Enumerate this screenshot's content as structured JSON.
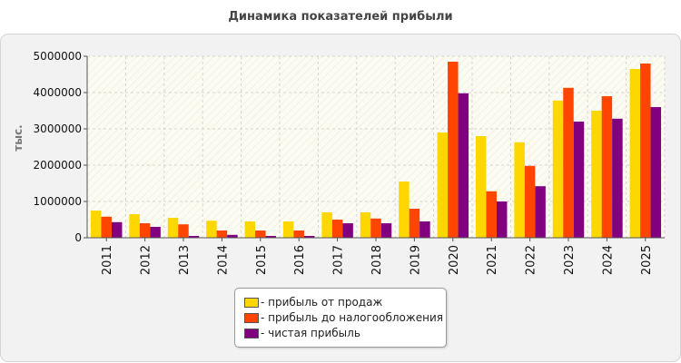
{
  "chart_data": {
    "type": "bar",
    "title": "Динамика показателей прибыли",
    "ylabel": "тыс.",
    "xlabel": "",
    "ylim": [
      0,
      5000000
    ],
    "yticks": [
      "0",
      "1000000",
      "2000000",
      "3000000",
      "4000000",
      "5000000"
    ],
    "categories": [
      "2011",
      "2012",
      "2013",
      "2014",
      "2015",
      "2016",
      "2017",
      "2018",
      "2019",
      "2020",
      "2021",
      "2022",
      "2023",
      "2024",
      "2025"
    ],
    "series": [
      {
        "name": "- прибыль от продаж",
        "color": "#ffd700",
        "values": [
          750000,
          650000,
          550000,
          470000,
          450000,
          450000,
          700000,
          700000,
          1550000,
          2900000,
          2800000,
          2630000,
          3780000,
          3500000,
          4650000
        ]
      },
      {
        "name": "- прибыль до налогообложения",
        "color": "#ff4500",
        "values": [
          580000,
          400000,
          370000,
          200000,
          200000,
          200000,
          500000,
          530000,
          800000,
          4850000,
          1280000,
          1980000,
          4130000,
          3900000,
          4800000
        ]
      },
      {
        "name": "- чистая прибыль",
        "color": "#800080",
        "values": [
          430000,
          300000,
          50000,
          80000,
          50000,
          50000,
          400000,
          400000,
          450000,
          3980000,
          1000000,
          1420000,
          3200000,
          3280000,
          3600000
        ]
      }
    ],
    "grid": true,
    "legend_position": "bottom-center"
  }
}
